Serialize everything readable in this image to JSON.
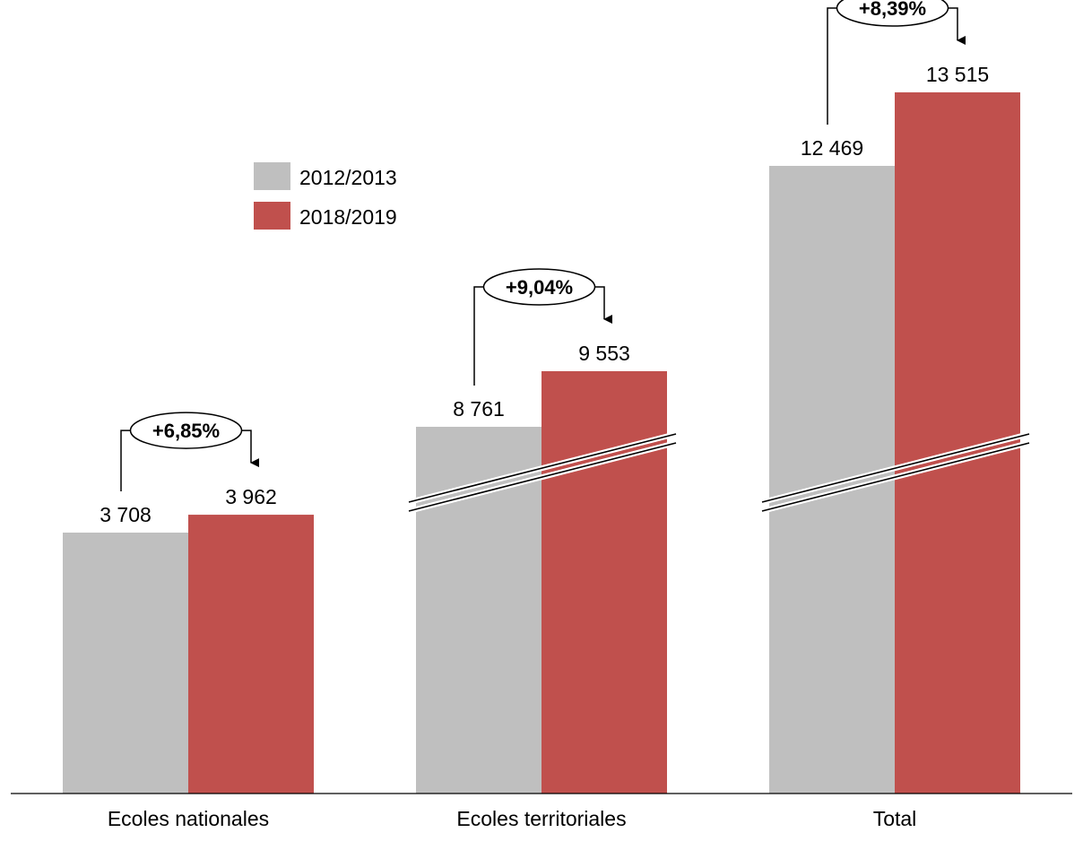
{
  "chart_data": {
    "type": "bar",
    "categories": [
      "Ecoles nationales",
      "Ecoles territoriales",
      "Total"
    ],
    "series": [
      {
        "name": "2012/2013",
        "color": "#bfbfbf",
        "values": [
          3708,
          8761,
          12469
        ]
      },
      {
        "name": "2018/2019",
        "color": "#c0504d",
        "values": [
          3962,
          9553,
          13515
        ]
      }
    ],
    "value_labels": [
      [
        "3 708",
        "8 761",
        "12 469"
      ],
      [
        "3 962",
        "9 553",
        "13 515"
      ]
    ],
    "changes": [
      "+6,85%",
      "+9,04%",
      "+8,39%"
    ],
    "broken_axis": [
      false,
      true,
      true
    ],
    "legend_position": "top-left",
    "grid": false
  }
}
